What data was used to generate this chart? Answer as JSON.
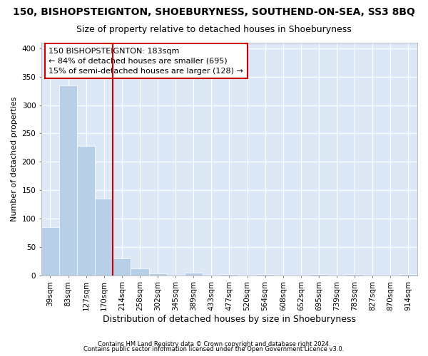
{
  "title1": "150, BISHOPSTEIGNTON, SHOEBURYNESS, SOUTHEND-ON-SEA, SS3 8BQ",
  "title2": "Size of property relative to detached houses in Shoeburyness",
  "xlabel": "Distribution of detached houses by size in Shoeburyness",
  "ylabel": "Number of detached properties",
  "footer1": "Contains HM Land Registry data © Crown copyright and database right 2024.",
  "footer2": "Contains public sector information licensed under the Open Government Licence v3.0.",
  "annotation_title": "150 BISHOPSTEIGNTON: 183sqm",
  "annotation_line1": "← 84% of detached houses are smaller (695)",
  "annotation_line2": "15% of semi-detached houses are larger (128) →",
  "bar_color": "#b8cfe8",
  "vline_color": "#cc0000",
  "vline_x": 3.5,
  "categories": [
    "39sqm",
    "83sqm",
    "127sqm",
    "170sqm",
    "214sqm",
    "258sqm",
    "302sqm",
    "345sqm",
    "389sqm",
    "433sqm",
    "477sqm",
    "520sqm",
    "564sqm",
    "608sqm",
    "652sqm",
    "695sqm",
    "739sqm",
    "783sqm",
    "827sqm",
    "870sqm",
    "914sqm"
  ],
  "values": [
    85,
    335,
    228,
    135,
    30,
    12,
    3,
    0,
    4,
    0,
    2,
    0,
    2,
    0,
    0,
    2,
    0,
    2,
    0,
    0,
    2
  ],
  "ylim": [
    0,
    410
  ],
  "yticks": [
    0,
    50,
    100,
    150,
    200,
    250,
    300,
    350,
    400
  ],
  "background_color": "#dce8f5",
  "grid_color": "#ffffff",
  "title_fontsize": 10,
  "subtitle_fontsize": 9,
  "tick_fontsize": 7.5,
  "xlabel_fontsize": 9,
  "ylabel_fontsize": 8
}
